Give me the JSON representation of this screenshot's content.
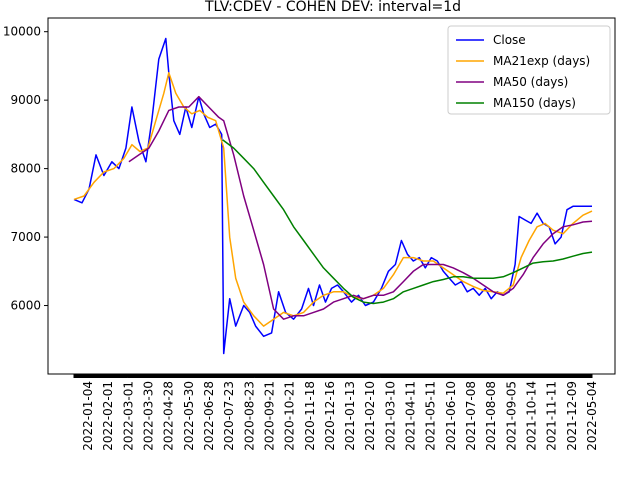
{
  "chart_data": {
    "type": "line",
    "title": "TLV:CDEV - COHEN DEV: interval=1d",
    "xlabel": "",
    "ylabel": "",
    "ylim": [
      5000,
      10200
    ],
    "yticks": [
      6000,
      7000,
      8000,
      9000,
      10000
    ],
    "ytick_labels": [
      "6000",
      "7000",
      "8000",
      "9000",
      "10000"
    ],
    "x_tick_labels": [
      "2022-01-04",
      "2022-02-01",
      "2022-03-01",
      "2022-03-30",
      "2022-04-28",
      "2022-05-30",
      "2022-06-28",
      "2020-07-23",
      "2020-08-23",
      "2020-09-21",
      "2020-10-21",
      "2020-11-18",
      "2020-12-16",
      "2021-01-13",
      "2021-02-10",
      "2021-03-10",
      "2021-04-11",
      "2021-05-11",
      "2021-06-10",
      "2021-07-08",
      "2021-08-08",
      "2021-09-05",
      "2021-10-14",
      "2021-11-11",
      "2021-12-09",
      "2022-05-04"
    ],
    "n_points": 520,
    "legend_position": "top-right",
    "grid": false,
    "series": [
      {
        "name": "Close",
        "color": "#0000ff",
        "points": [
          [
            0,
            7550
          ],
          [
            8,
            7500
          ],
          [
            15,
            7700
          ],
          [
            22,
            8200
          ],
          [
            30,
            7900
          ],
          [
            38,
            8100
          ],
          [
            45,
            8000
          ],
          [
            52,
            8300
          ],
          [
            58,
            8900
          ],
          [
            65,
            8400
          ],
          [
            72,
            8100
          ],
          [
            78,
            8700
          ],
          [
            85,
            9600
          ],
          [
            92,
            9900
          ],
          [
            95,
            9400
          ],
          [
            100,
            8700
          ],
          [
            106,
            8500
          ],
          [
            112,
            8900
          ],
          [
            118,
            8600
          ],
          [
            125,
            9050
          ],
          [
            130,
            8800
          ],
          [
            136,
            8600
          ],
          [
            142,
            8650
          ],
          [
            148,
            8500
          ],
          [
            150,
            5300
          ],
          [
            156,
            6100
          ],
          [
            162,
            5700
          ],
          [
            170,
            6000
          ],
          [
            176,
            5900
          ],
          [
            182,
            5700
          ],
          [
            190,
            5550
          ],
          [
            198,
            5600
          ],
          [
            205,
            6200
          ],
          [
            212,
            5900
          ],
          [
            220,
            5800
          ],
          [
            228,
            5950
          ],
          [
            235,
            6250
          ],
          [
            240,
            6000
          ],
          [
            246,
            6300
          ],
          [
            252,
            6050
          ],
          [
            258,
            6250
          ],
          [
            264,
            6300
          ],
          [
            270,
            6200
          ],
          [
            278,
            6050
          ],
          [
            285,
            6150
          ],
          [
            292,
            6000
          ],
          [
            300,
            6050
          ],
          [
            308,
            6250
          ],
          [
            315,
            6500
          ],
          [
            322,
            6600
          ],
          [
            328,
            6950
          ],
          [
            334,
            6750
          ],
          [
            340,
            6650
          ],
          [
            346,
            6700
          ],
          [
            352,
            6550
          ],
          [
            358,
            6700
          ],
          [
            364,
            6650
          ],
          [
            370,
            6500
          ],
          [
            376,
            6400
          ],
          [
            382,
            6300
          ],
          [
            388,
            6350
          ],
          [
            394,
            6200
          ],
          [
            400,
            6250
          ],
          [
            406,
            6150
          ],
          [
            412,
            6250
          ],
          [
            418,
            6100
          ],
          [
            424,
            6200
          ],
          [
            430,
            6150
          ],
          [
            436,
            6200
          ],
          [
            442,
            6600
          ],
          [
            446,
            7300
          ],
          [
            452,
            7250
          ],
          [
            458,
            7200
          ],
          [
            464,
            7350
          ],
          [
            470,
            7200
          ],
          [
            476,
            7150
          ],
          [
            482,
            6900
          ],
          [
            488,
            7000
          ],
          [
            494,
            7400
          ],
          [
            500,
            7450
          ],
          [
            519,
            7450
          ]
        ]
      },
      {
        "name": "MA21exp (days)",
        "color": "#ffa500",
        "points": [
          [
            0,
            7550
          ],
          [
            10,
            7600
          ],
          [
            20,
            7800
          ],
          [
            30,
            7950
          ],
          [
            40,
            8000
          ],
          [
            50,
            8150
          ],
          [
            58,
            8350
          ],
          [
            66,
            8250
          ],
          [
            74,
            8300
          ],
          [
            82,
            8700
          ],
          [
            90,
            9100
          ],
          [
            95,
            9400
          ],
          [
            102,
            9100
          ],
          [
            110,
            8900
          ],
          [
            118,
            8800
          ],
          [
            126,
            8850
          ],
          [
            134,
            8750
          ],
          [
            142,
            8700
          ],
          [
            150,
            8300
          ],
          [
            156,
            7000
          ],
          [
            162,
            6400
          ],
          [
            170,
            6050
          ],
          [
            180,
            5850
          ],
          [
            190,
            5700
          ],
          [
            200,
            5800
          ],
          [
            210,
            5900
          ],
          [
            220,
            5850
          ],
          [
            230,
            5900
          ],
          [
            240,
            6050
          ],
          [
            250,
            6150
          ],
          [
            260,
            6200
          ],
          [
            270,
            6200
          ],
          [
            280,
            6120
          ],
          [
            290,
            6100
          ],
          [
            300,
            6150
          ],
          [
            310,
            6250
          ],
          [
            320,
            6450
          ],
          [
            330,
            6700
          ],
          [
            340,
            6700
          ],
          [
            350,
            6650
          ],
          [
            360,
            6650
          ],
          [
            370,
            6550
          ],
          [
            380,
            6450
          ],
          [
            390,
            6350
          ],
          [
            400,
            6280
          ],
          [
            410,
            6220
          ],
          [
            420,
            6200
          ],
          [
            430,
            6180
          ],
          [
            440,
            6300
          ],
          [
            448,
            6700
          ],
          [
            456,
            6950
          ],
          [
            464,
            7150
          ],
          [
            472,
            7200
          ],
          [
            480,
            7100
          ],
          [
            490,
            7050
          ],
          [
            500,
            7200
          ],
          [
            510,
            7320
          ],
          [
            519,
            7380
          ]
        ]
      },
      {
        "name": "MA50 (days)",
        "color": "#800080",
        "points": [
          [
            55,
            8100
          ],
          [
            65,
            8200
          ],
          [
            75,
            8300
          ],
          [
            85,
            8550
          ],
          [
            95,
            8850
          ],
          [
            105,
            8900
          ],
          [
            115,
            8900
          ],
          [
            125,
            9050
          ],
          [
            135,
            8900
          ],
          [
            145,
            8750
          ],
          [
            150,
            8700
          ],
          [
            160,
            8200
          ],
          [
            170,
            7600
          ],
          [
            180,
            7100
          ],
          [
            190,
            6600
          ],
          [
            200,
            5950
          ],
          [
            210,
            5800
          ],
          [
            220,
            5850
          ],
          [
            230,
            5850
          ],
          [
            240,
            5900
          ],
          [
            250,
            5950
          ],
          [
            260,
            6050
          ],
          [
            270,
            6100
          ],
          [
            280,
            6150
          ],
          [
            290,
            6100
          ],
          [
            300,
            6150
          ],
          [
            310,
            6150
          ],
          [
            320,
            6200
          ],
          [
            330,
            6350
          ],
          [
            340,
            6500
          ],
          [
            350,
            6600
          ],
          [
            360,
            6600
          ],
          [
            370,
            6600
          ],
          [
            380,
            6550
          ],
          [
            390,
            6480
          ],
          [
            400,
            6400
          ],
          [
            410,
            6300
          ],
          [
            420,
            6200
          ],
          [
            430,
            6150
          ],
          [
            440,
            6250
          ],
          [
            450,
            6450
          ],
          [
            460,
            6700
          ],
          [
            470,
            6900
          ],
          [
            480,
            7050
          ],
          [
            490,
            7150
          ],
          [
            500,
            7180
          ],
          [
            510,
            7220
          ],
          [
            519,
            7230
          ]
        ]
      },
      {
        "name": "MA150 (days)",
        "color": "#008000",
        "points": [
          [
            149,
            8420
          ],
          [
            160,
            8300
          ],
          [
            170,
            8150
          ],
          [
            180,
            8000
          ],
          [
            190,
            7800
          ],
          [
            200,
            7600
          ],
          [
            210,
            7400
          ],
          [
            220,
            7150
          ],
          [
            230,
            6950
          ],
          [
            240,
            6750
          ],
          [
            250,
            6550
          ],
          [
            260,
            6400
          ],
          [
            270,
            6250
          ],
          [
            280,
            6120
          ],
          [
            290,
            6050
          ],
          [
            300,
            6030
          ],
          [
            310,
            6050
          ],
          [
            320,
            6100
          ],
          [
            330,
            6200
          ],
          [
            340,
            6250
          ],
          [
            350,
            6300
          ],
          [
            360,
            6350
          ],
          [
            370,
            6380
          ],
          [
            380,
            6420
          ],
          [
            390,
            6420
          ],
          [
            400,
            6400
          ],
          [
            410,
            6400
          ],
          [
            420,
            6400
          ],
          [
            430,
            6420
          ],
          [
            440,
            6480
          ],
          [
            450,
            6550
          ],
          [
            460,
            6620
          ],
          [
            470,
            6640
          ],
          [
            480,
            6650
          ],
          [
            490,
            6680
          ],
          [
            500,
            6720
          ],
          [
            510,
            6760
          ],
          [
            519,
            6780
          ]
        ]
      }
    ]
  }
}
